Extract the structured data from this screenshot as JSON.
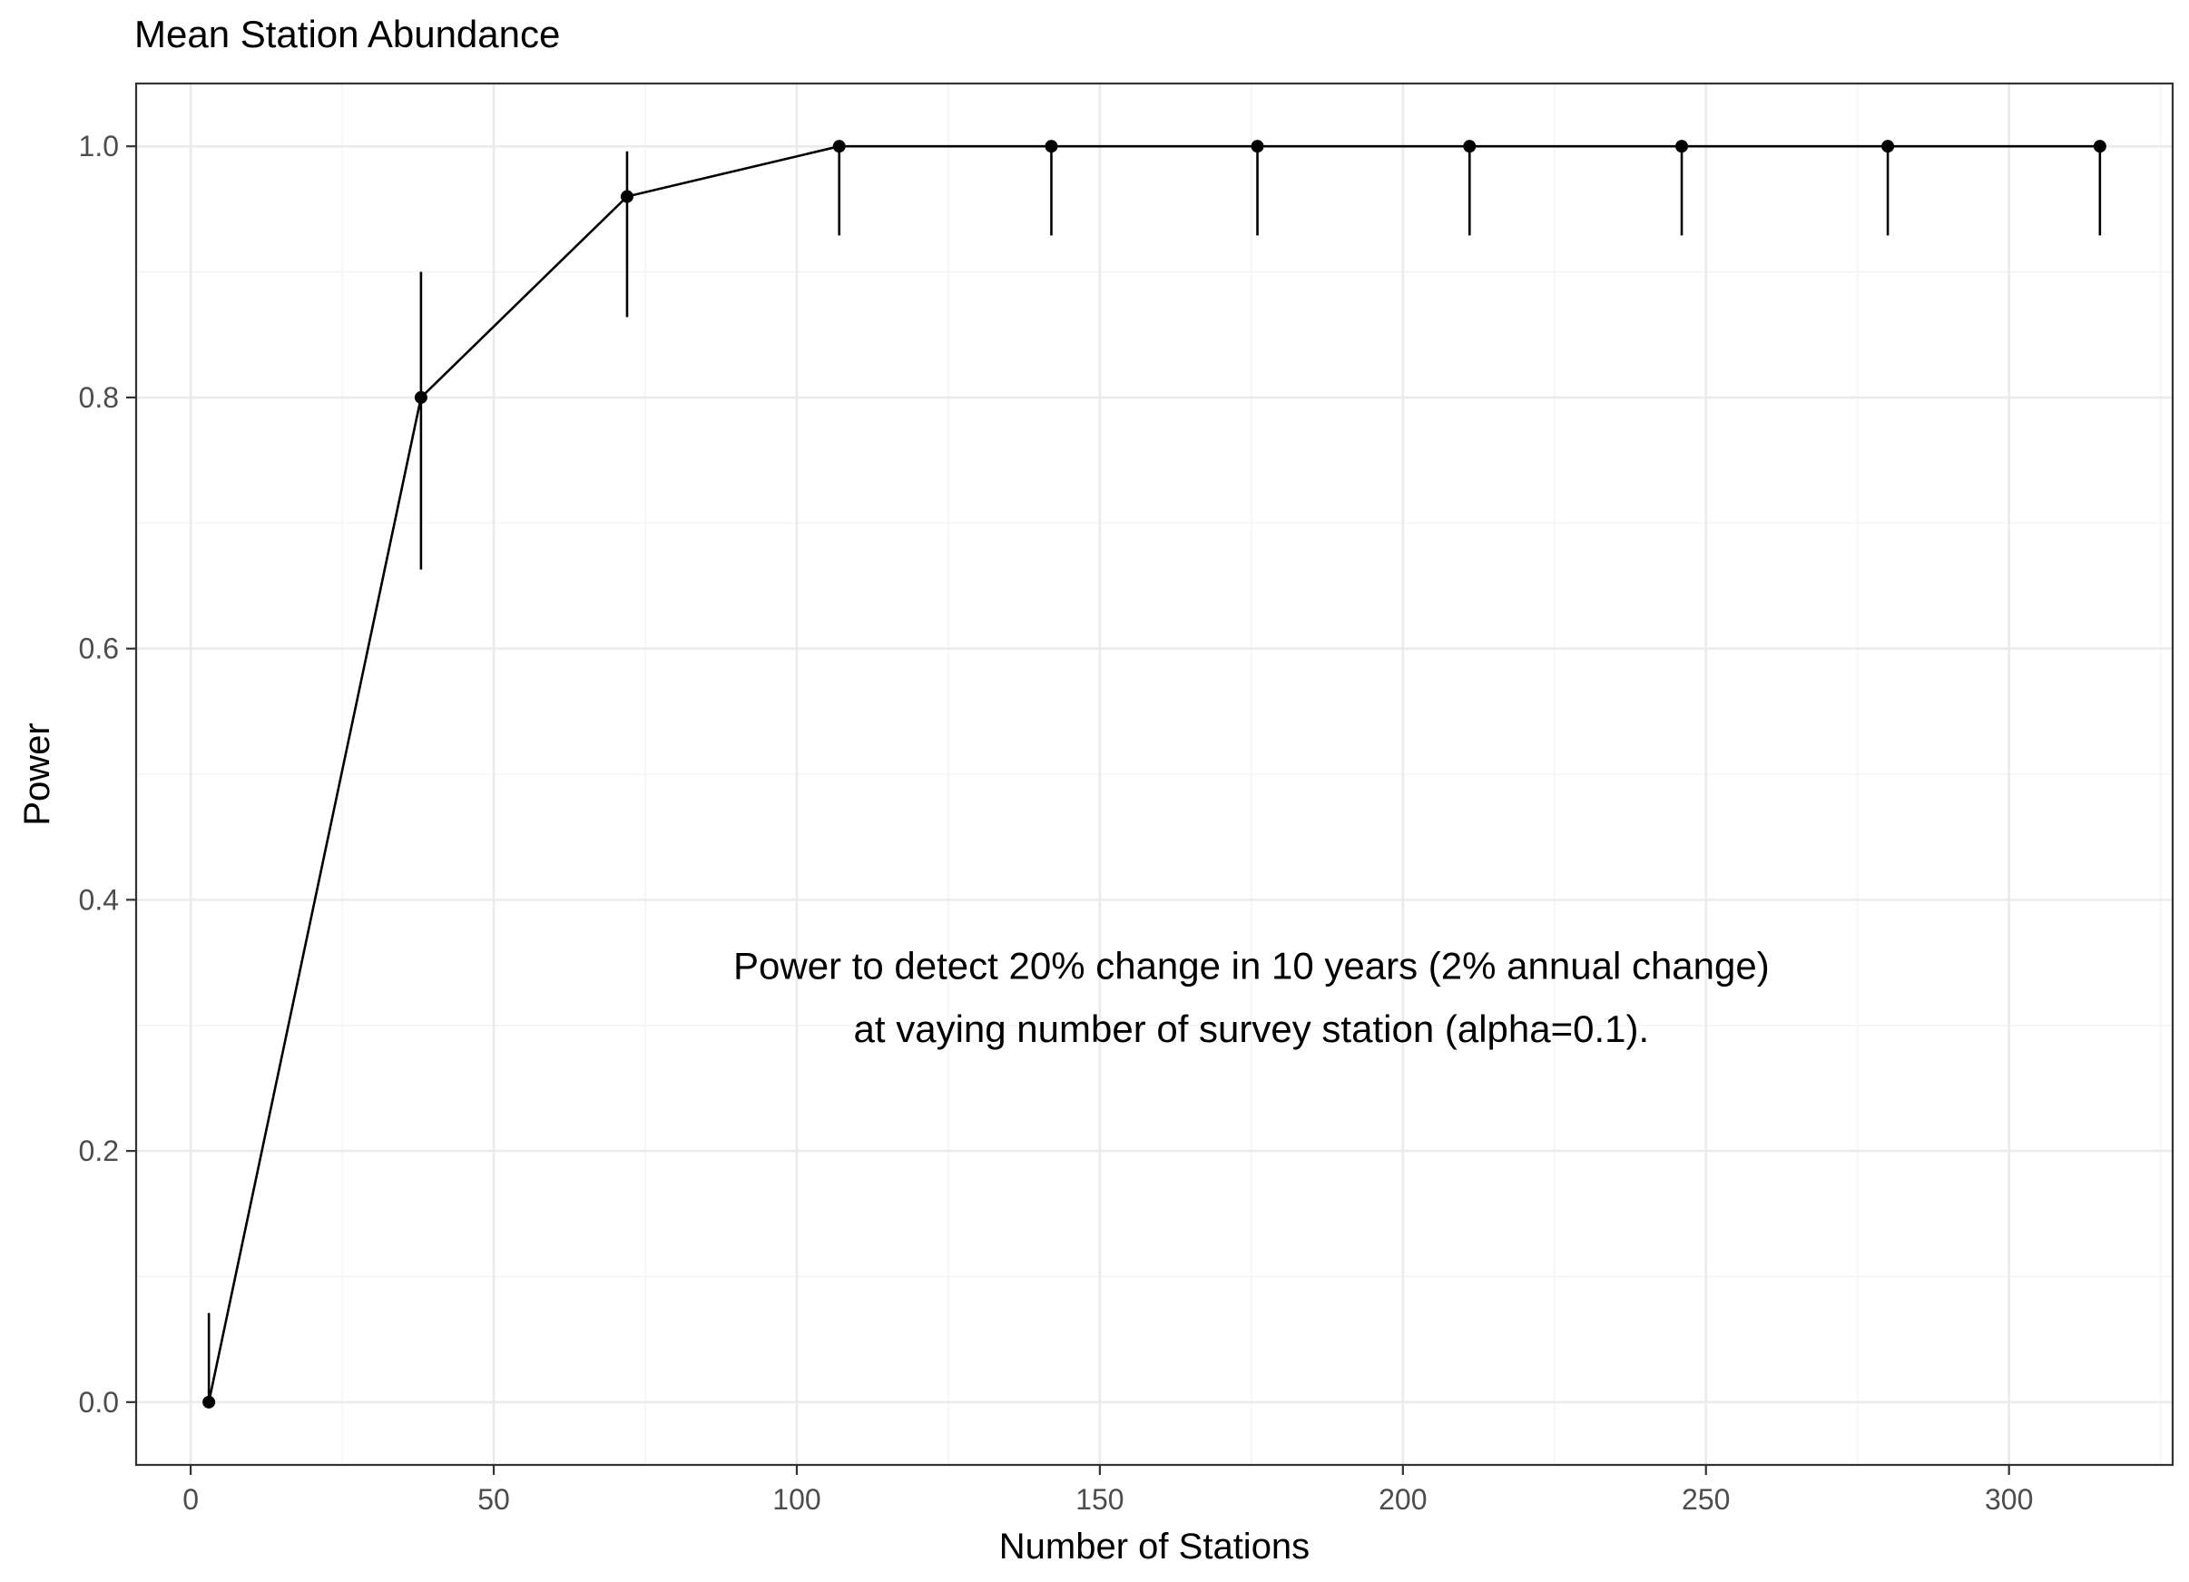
{
  "chart_data": {
    "type": "line",
    "title": "Mean Station Abundance",
    "xlabel": "Number of Stations",
    "ylabel": "Power",
    "xlim": [
      -9,
      327
    ],
    "ylim": [
      -0.05,
      1.05
    ],
    "x_ticks": [
      0,
      50,
      100,
      150,
      200,
      250,
      300
    ],
    "x_tick_labels": [
      "0",
      "50",
      "100",
      "150",
      "200",
      "250",
      "300"
    ],
    "y_ticks": [
      0.0,
      0.2,
      0.4,
      0.6,
      0.8,
      1.0
    ],
    "y_tick_labels": [
      "0.0",
      "0.2",
      "0.4",
      "0.6",
      "0.8",
      "1.0"
    ],
    "x_minor_ticks": [
      25,
      75,
      125,
      175,
      225,
      275,
      325
    ],
    "y_minor_ticks": [
      0.1,
      0.3,
      0.5,
      0.7,
      0.9
    ],
    "grid": true,
    "legend": "none",
    "series": [
      {
        "x": [
          3,
          38,
          72,
          107,
          142,
          176,
          211,
          246,
          280,
          315
        ],
        "y": [
          0.0,
          0.8,
          0.96,
          1.0,
          1.0,
          1.0,
          1.0,
          1.0,
          1.0,
          1.0
        ],
        "y_lower": [
          0.0,
          0.663,
          0.864,
          0.929,
          0.929,
          0.929,
          0.929,
          0.929,
          0.929,
          0.929
        ],
        "y_upper": [
          0.071,
          0.9,
          0.996,
          1.0,
          1.0,
          1.0,
          1.0,
          1.0,
          1.0,
          1.0
        ]
      }
    ],
    "annotation": {
      "lines": [
        "Power to detect 20% change in 10 years (2% annual change)",
        "at vaying number of survey station (alpha=0.1)."
      ],
      "x": 175,
      "y": [
        0.347,
        0.297
      ]
    },
    "colors": {
      "line": "#000000",
      "point": "#000000",
      "grid_major": "#ebebeb",
      "grid_minor": "#f5f5f5",
      "panel_border": "#333333",
      "background": "#ffffff"
    }
  }
}
